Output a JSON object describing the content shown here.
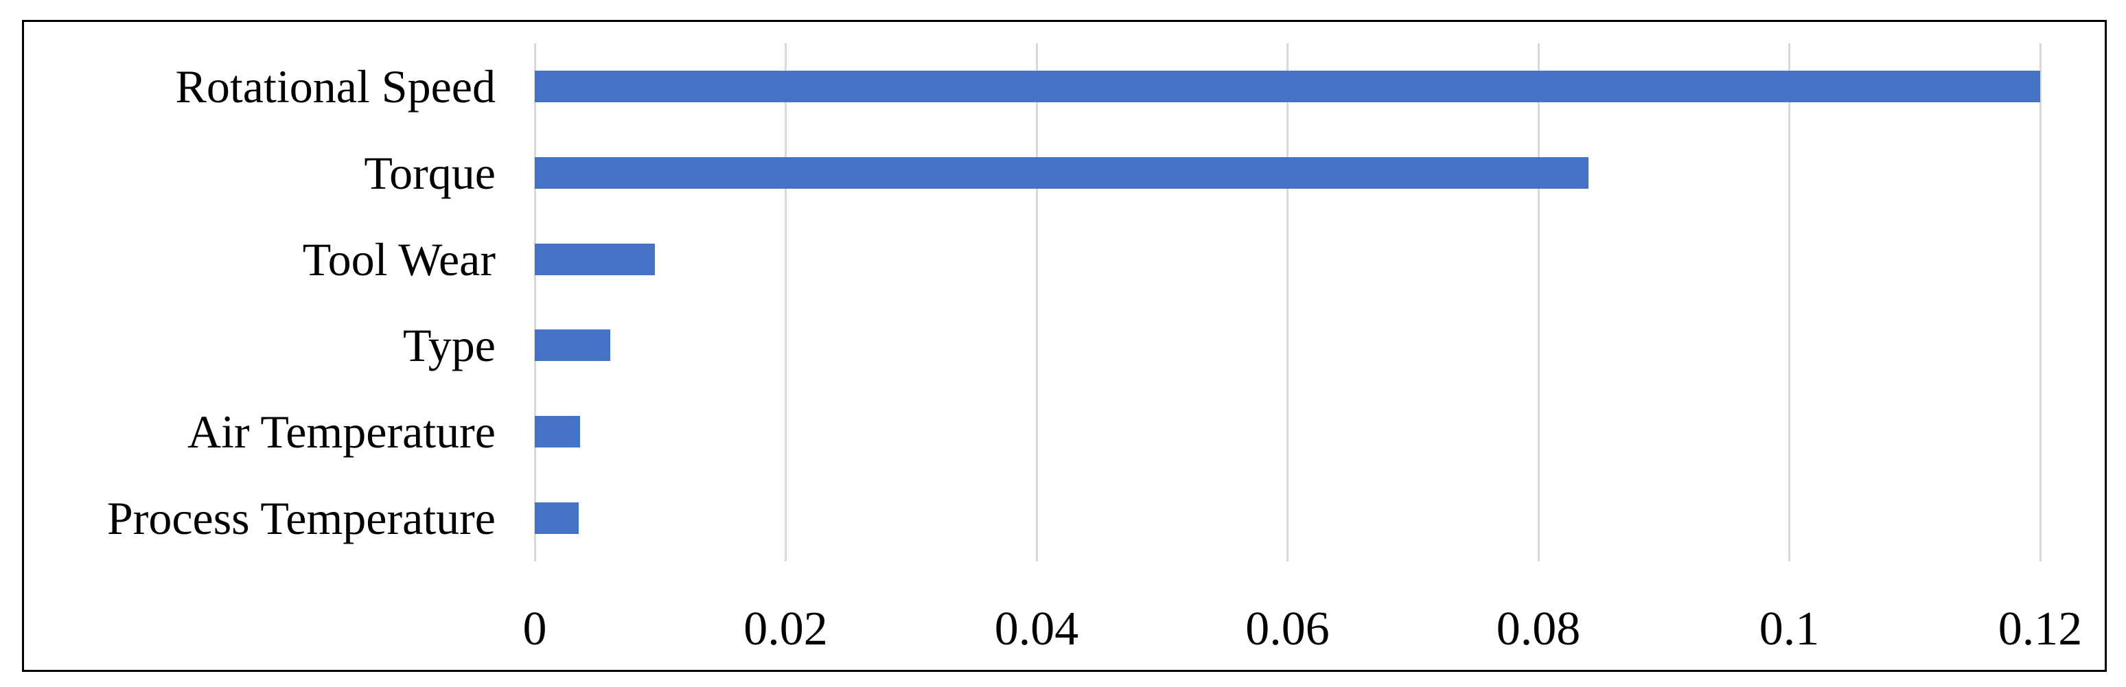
{
  "chart_data": {
    "type": "bar",
    "orientation": "horizontal",
    "title": "",
    "xlabel": "",
    "ylabel": "",
    "categories": [
      "Rotational Speed",
      "Torque",
      "Tool Wear",
      "Type",
      "Air Temperature",
      "Process Temperature"
    ],
    "values": [
      0.12,
      0.084,
      0.0096,
      0.006,
      0.0036,
      0.0035
    ],
    "xlim": [
      0,
      0.12
    ],
    "xticks": [
      0,
      0.02,
      0.04,
      0.06,
      0.08,
      0.1,
      0.12
    ],
    "xtick_labels": [
      "0",
      "0.02",
      "0.04",
      "0.06",
      "0.08",
      "0.1",
      "0.12"
    ],
    "grid": true,
    "legend": false,
    "bar_color": "#4472C4",
    "gridline_color": "#D9D9D9",
    "frame_color": "#000000",
    "text_color": "#000000",
    "background": "#FFFFFF"
  }
}
